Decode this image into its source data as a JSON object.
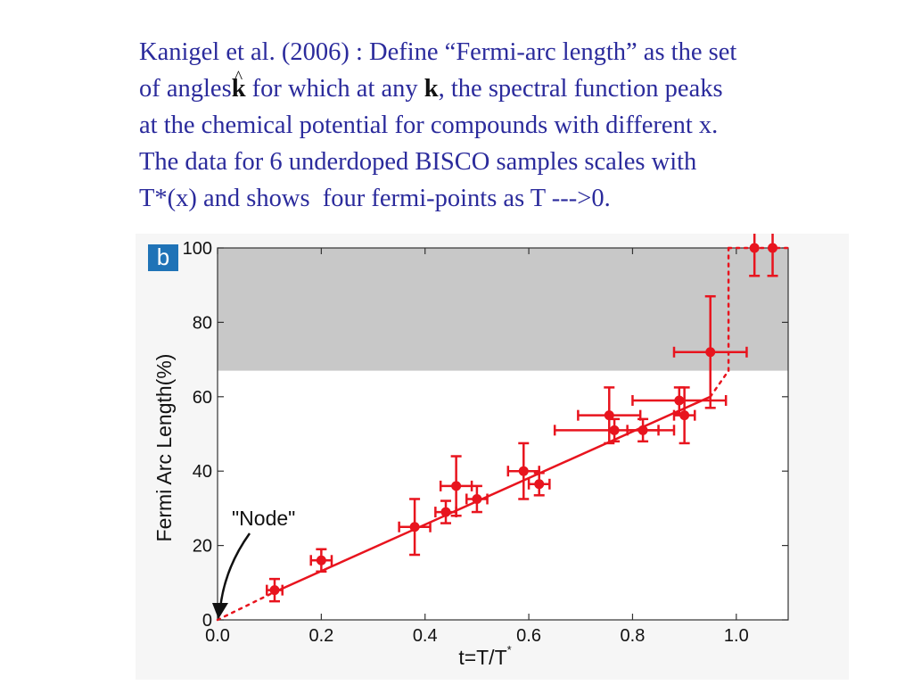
{
  "caption": {
    "line1": "Kanigel et al. (2006) : Define “Fermi-arc length” as the set",
    "line2a": "of angles",
    "line2_khat": "k",
    "line2b": " for which at any ",
    "line2_k": "k",
    "line2c": ", the spectral function peaks",
    "line3": "at the chemical potential for compounds with different x.",
    "line4": "The data for 6 underdoped BISCO samples scales with",
    "line5": "T*(x) and shows  four fermi-points as T --->0."
  },
  "chart_data": {
    "type": "scatter",
    "panel_label": "b",
    "xlabel": "t=T/T",
    "xlabel_sup": "*",
    "ylabel": "Fermi Arc Length(%)",
    "xlim": [
      0.0,
      1.1
    ],
    "ylim": [
      0,
      100
    ],
    "x_ticks": [
      "0.0",
      "0.2",
      "0.4",
      "0.6",
      "0.8",
      "1.0"
    ],
    "x_tick_values": [
      0.0,
      0.2,
      0.4,
      0.6,
      0.8,
      1.0
    ],
    "y_ticks": [
      "0",
      "20",
      "40",
      "60",
      "80",
      "100"
    ],
    "y_tick_values": [
      0,
      20,
      40,
      60,
      80,
      100
    ],
    "shaded_region": {
      "y_from": 67,
      "y_to": 100,
      "color": "#c8c8c8"
    },
    "series_color": "#e8141e",
    "points": [
      {
        "x": 0.11,
        "y": 8,
        "xerr": 0.015,
        "yerr": 3
      },
      {
        "x": 0.2,
        "y": 16,
        "xerr": 0.02,
        "yerr": 3
      },
      {
        "x": 0.38,
        "y": 25,
        "xerr": 0.03,
        "yerr": 7.5
      },
      {
        "x": 0.44,
        "y": 29,
        "xerr": 0.02,
        "yerr": 3
      },
      {
        "x": 0.46,
        "y": 36,
        "xerr": 0.03,
        "yerr": 8
      },
      {
        "x": 0.5,
        "y": 32.5,
        "xerr": 0.02,
        "yerr": 3.5
      },
      {
        "x": 0.59,
        "y": 40,
        "xerr": 0.03,
        "yerr": 7.5
      },
      {
        "x": 0.62,
        "y": 36.5,
        "xerr": 0.02,
        "yerr": 3
      },
      {
        "x": 0.755,
        "y": 55,
        "xerr": 0.06,
        "yerr": 7.5
      },
      {
        "x": 0.765,
        "y": 51,
        "xerr": 0.115,
        "yerr": 3
      },
      {
        "x": 0.82,
        "y": 51,
        "xerr": 0.03,
        "yerr": 3
      },
      {
        "x": 0.89,
        "y": 59,
        "xerr": 0.09,
        "yerr": 3.5
      },
      {
        "x": 0.9,
        "y": 55,
        "xerr": 0.02,
        "yerr": 7.5
      },
      {
        "x": 0.95,
        "y": 72,
        "xerr": 0.07,
        "yerr": 15
      },
      {
        "x": 1.035,
        "y": 100,
        "xerr": 0,
        "yerr": 7.5
      },
      {
        "x": 1.07,
        "y": 100,
        "xerr": 0,
        "yerr": 7.5
      }
    ],
    "fit_line": [
      [
        0.11,
        7.5
      ],
      [
        0.95,
        60
      ]
    ],
    "dotted_lines": [
      [
        [
          0.0,
          0.0
        ],
        [
          0.11,
          7.5
        ]
      ],
      [
        [
          0.95,
          60
        ],
        [
          0.985,
          67
        ]
      ],
      [
        [
          0.985,
          67
        ],
        [
          0.985,
          100
        ]
      ],
      [
        [
          0.985,
          100
        ],
        [
          1.1,
          100
        ]
      ]
    ],
    "annotation": {
      "text": "\"Node\"",
      "x": 0.0,
      "y": 0
    }
  }
}
